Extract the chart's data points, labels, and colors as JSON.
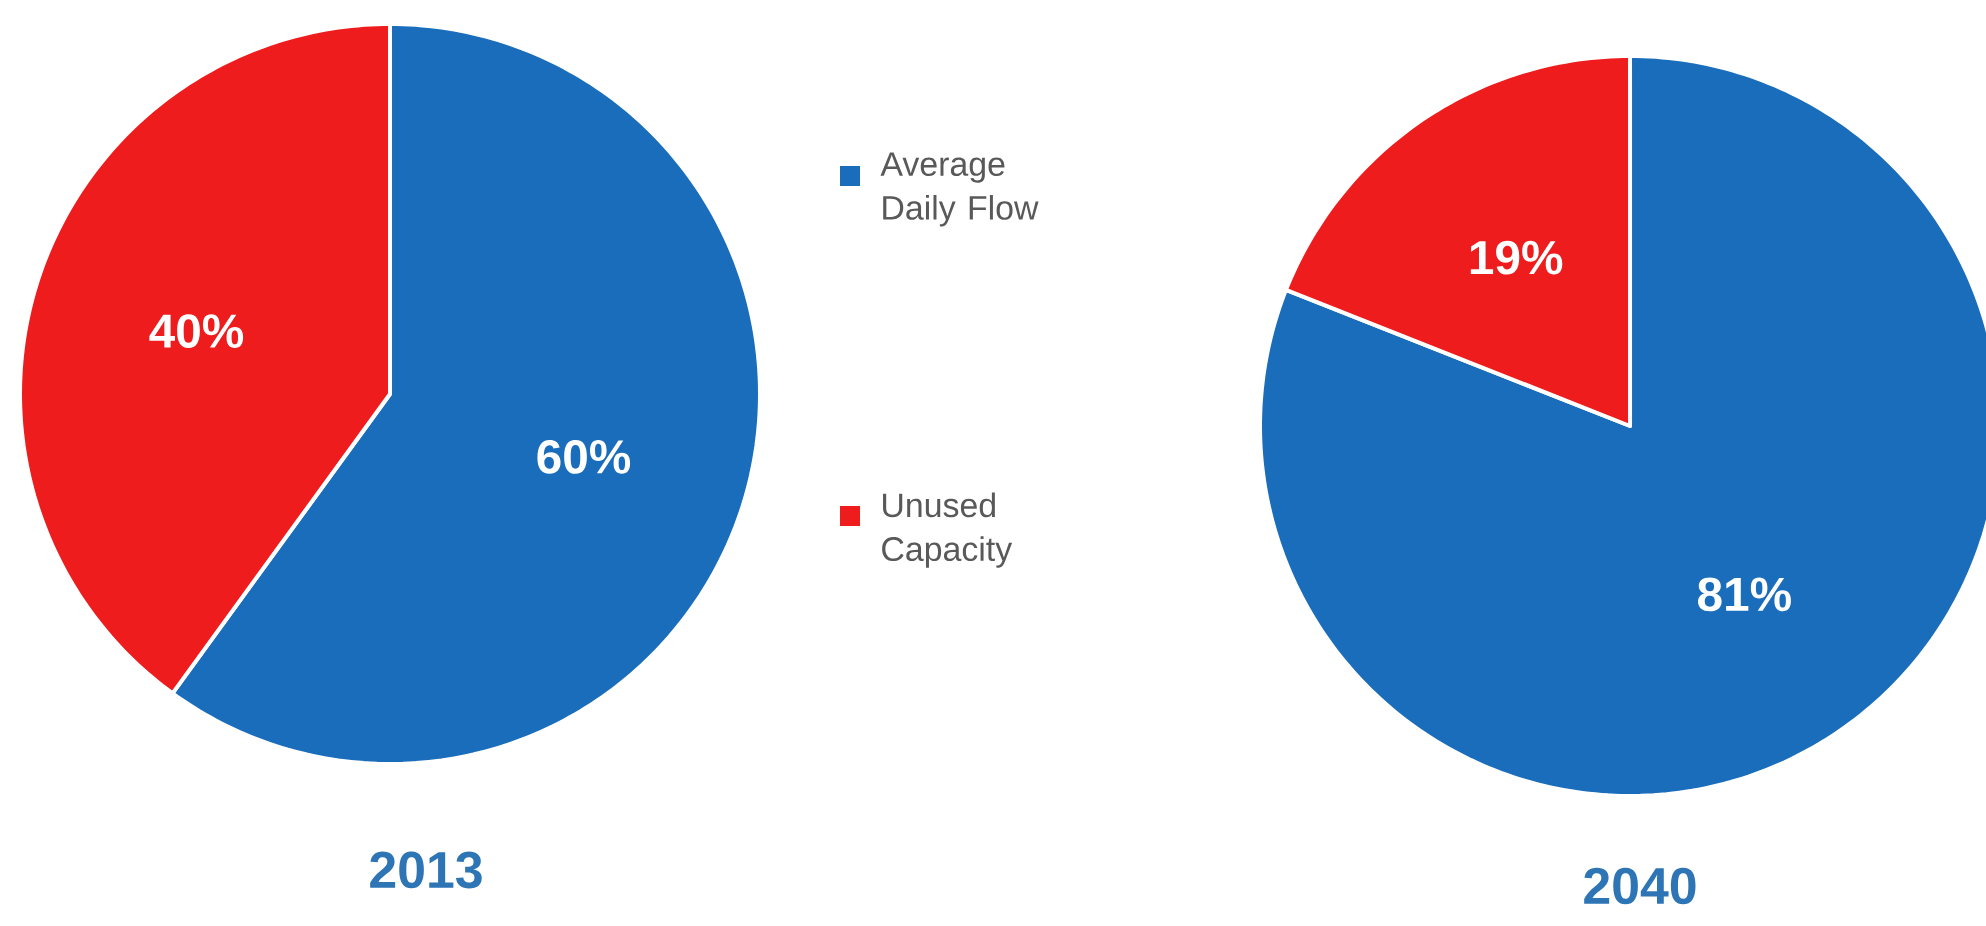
{
  "chart_data": [
    {
      "type": "pie",
      "title": "2013",
      "categories": [
        "Average Daily Flow",
        "Unused Capacity"
      ],
      "values": [
        60,
        40
      ],
      "colors": [
        "#1a6dbb",
        "#ee1c1c"
      ],
      "value_labels": [
        "60%",
        "40%"
      ],
      "legend": "right"
    },
    {
      "type": "pie",
      "title": "2040",
      "categories": [
        null,
        null
      ],
      "values": [
        81,
        19
      ],
      "colors": [
        "#1a6dbb",
        "#ee1c1c"
      ],
      "value_labels": [
        "81%",
        "19%"
      ],
      "legend": false
    }
  ]
}
